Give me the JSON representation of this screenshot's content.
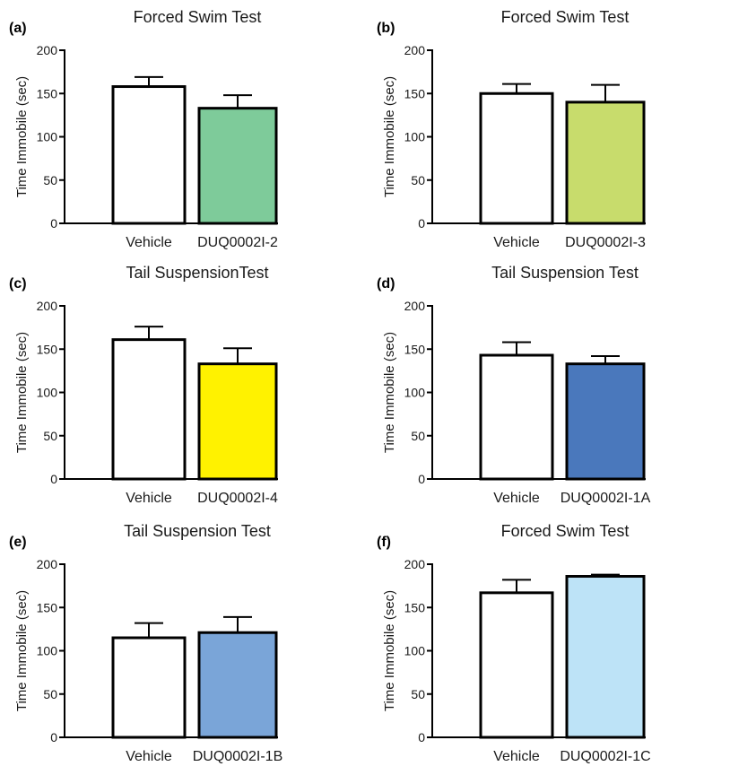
{
  "chart_data": [
    {
      "panel": "(a)",
      "type": "bar",
      "title": "Forced Swim Test",
      "ylabel": "Time Immobile (sec)",
      "ylim": [
        0,
        200
      ],
      "yticks": [
        "0",
        "50",
        "100",
        "150",
        "200"
      ],
      "categories": [
        "Vehicle",
        "DUQ0002I-2"
      ],
      "values": [
        158,
        133
      ],
      "errors": [
        11,
        15
      ],
      "colors": [
        "#ffffff",
        "#7ecb9a"
      ]
    },
    {
      "panel": "(b)",
      "type": "bar",
      "title": "Forced Swim Test",
      "ylabel": "Time Immobile (sec)",
      "ylim": [
        0,
        200
      ],
      "yticks": [
        "0",
        "50",
        "100",
        "150",
        "200"
      ],
      "categories": [
        "Vehicle",
        "DUQ0002I-3"
      ],
      "values": [
        150,
        140
      ],
      "errors": [
        11,
        20
      ],
      "colors": [
        "#ffffff",
        "#c8dc6c"
      ]
    },
    {
      "panel": "(c)",
      "type": "bar",
      "title": "Tail SuspensionTest",
      "ylabel": "Time Immobile (sec)",
      "ylim": [
        0,
        200
      ],
      "yticks": [
        "0",
        "50",
        "100",
        "150",
        "200"
      ],
      "categories": [
        "Vehicle",
        "DUQ0002I-4"
      ],
      "values": [
        161,
        133
      ],
      "errors": [
        15,
        18
      ],
      "colors": [
        "#ffffff",
        "#fff200"
      ]
    },
    {
      "panel": "(d)",
      "type": "bar",
      "title": "Tail Suspension Test",
      "ylabel": "Time Immobile (sec)",
      "ylim": [
        0,
        200
      ],
      "yticks": [
        "0",
        "50",
        "100",
        "150",
        "200"
      ],
      "categories": [
        "Vehicle",
        "DUQ0002I-1A"
      ],
      "values": [
        143,
        133
      ],
      "errors": [
        15,
        9
      ],
      "colors": [
        "#ffffff",
        "#4a78bc"
      ]
    },
    {
      "panel": "(e)",
      "type": "bar",
      "title": "Tail Suspension Test",
      "ylabel": "Time Immobile (sec)",
      "ylim": [
        0,
        200
      ],
      "yticks": [
        "0",
        "50",
        "100",
        "150",
        "200"
      ],
      "categories": [
        "Vehicle",
        "DUQ0002I-1B"
      ],
      "values": [
        115,
        121
      ],
      "errors": [
        17,
        18
      ],
      "colors": [
        "#ffffff",
        "#7aa5d8"
      ]
    },
    {
      "panel": "(f)",
      "type": "bar",
      "title": "Forced Swim Test",
      "ylabel": "Time Immobile (sec)",
      "ylim": [
        0,
        200
      ],
      "yticks": [
        "0",
        "50",
        "100",
        "150",
        "200"
      ],
      "categories": [
        "Vehicle",
        "DUQ0002I-1C"
      ],
      "values": [
        167,
        186
      ],
      "errors": [
        15,
        2
      ],
      "colors": [
        "#ffffff",
        "#bde3f7"
      ]
    }
  ]
}
